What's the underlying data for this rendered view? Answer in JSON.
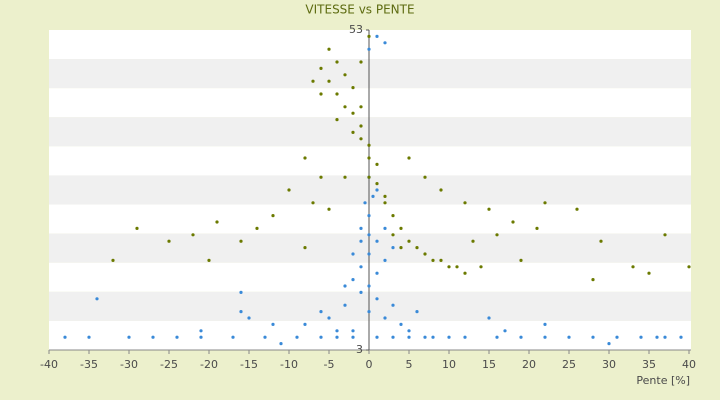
{
  "chart_data": {
    "type": "scatter",
    "title": "VITESSE vs PENTE",
    "x_label": "Pente [%]",
    "xlim": [
      -40,
      40
    ],
    "xticks": [
      -40,
      -35,
      -30,
      -25,
      -20,
      -15,
      -10,
      -5,
      0,
      5,
      10,
      15,
      20,
      25,
      30,
      35,
      40
    ],
    "ylim": [
      3,
      53
    ],
    "yticks": [
      3,
      53
    ],
    "series": [
      {
        "color": "#3a8ad8",
        "x": [
          -38,
          -35,
          -30,
          -27,
          -24,
          -21,
          -17,
          -13,
          -9,
          -6,
          -4,
          -2,
          1,
          3,
          5,
          8,
          12,
          16,
          19,
          22,
          25,
          28,
          31,
          34,
          37,
          39,
          -8,
          -6,
          -5,
          -3,
          -2,
          -1,
          0,
          1,
          2,
          3,
          4,
          6,
          -4,
          5,
          7,
          -2,
          -1,
          0,
          1,
          -1,
          0,
          1,
          2,
          -3,
          0,
          0.5,
          -0.5,
          1,
          0,
          -1,
          2,
          3,
          -2,
          0,
          -34,
          -16,
          -16,
          -15,
          -21,
          -11,
          15,
          17,
          22,
          30,
          36,
          -12,
          10,
          0,
          1,
          2
        ],
        "values": [
          5,
          5,
          5,
          5,
          5,
          5,
          5,
          5,
          5,
          5,
          5,
          5,
          5,
          5,
          5,
          5,
          5,
          5,
          5,
          5,
          5,
          5,
          5,
          5,
          5,
          5,
          7,
          9,
          8,
          10,
          6,
          12,
          9,
          11,
          8,
          10,
          7,
          9,
          6,
          6,
          5,
          14,
          16,
          18,
          20,
          22,
          24,
          15,
          17,
          13,
          13,
          27,
          26,
          28,
          30,
          20,
          22,
          19,
          18,
          21,
          11,
          12,
          9,
          8,
          6,
          4,
          8,
          6,
          7,
          4,
          5,
          7,
          5,
          50,
          52,
          51
        ]
      },
      {
        "color": "#6b7a00",
        "x": [
          -5,
          -4,
          -6,
          -5,
          -3,
          -4,
          -2,
          -3,
          -2,
          -1,
          -2,
          -1,
          0,
          0,
          1,
          0,
          1,
          2,
          3,
          2,
          4,
          5,
          6,
          7,
          8,
          9,
          10,
          11,
          12,
          14,
          3,
          4,
          -6,
          -4,
          -7,
          -1,
          -8,
          -6,
          -10,
          -7,
          -12,
          -14,
          -16,
          -19,
          -22,
          -29,
          -32,
          -20,
          -25,
          5,
          7,
          9,
          12,
          15,
          18,
          21,
          22,
          26,
          29,
          33,
          37,
          40,
          28,
          35,
          16,
          19,
          13,
          -3,
          -5,
          -8,
          -1,
          0
        ],
        "values": [
          50,
          48,
          47,
          45,
          46,
          43,
          44,
          41,
          40,
          38,
          37,
          36,
          35,
          33,
          32,
          30,
          29,
          27,
          24,
          26,
          22,
          20,
          19,
          18,
          17,
          17,
          16,
          16,
          15,
          16,
          21,
          19,
          43,
          39,
          45,
          41,
          33,
          30,
          28,
          26,
          24,
          22,
          20,
          23,
          21,
          22,
          17,
          17,
          20,
          33,
          30,
          28,
          26,
          25,
          23,
          22,
          26,
          25,
          20,
          16,
          21,
          16,
          14,
          15,
          21,
          17,
          20,
          30,
          25,
          19,
          48,
          52
        ]
      }
    ]
  }
}
